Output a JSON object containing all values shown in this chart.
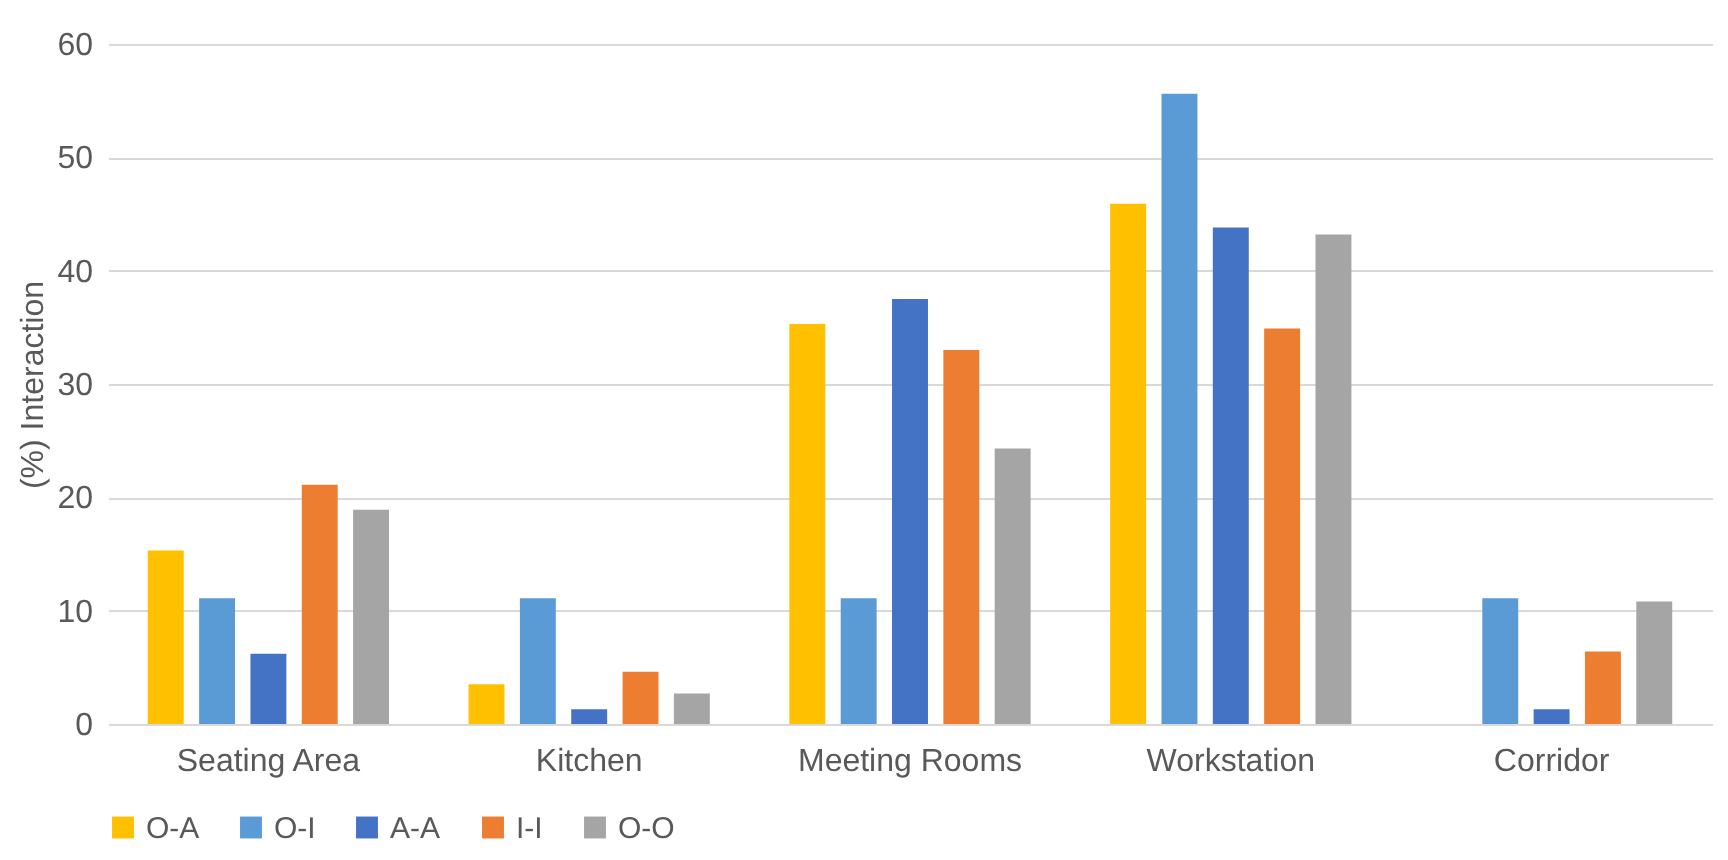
{
  "chart_data": {
    "type": "bar",
    "ylabel": "(%) Interaction",
    "categories": [
      "Seating Area",
      "Kitchen",
      "Meeting Rooms",
      "Workstation",
      "Corridor"
    ],
    "series": [
      {
        "name": "O-A",
        "color": "#ffc000",
        "values": [
          15.3,
          3.5,
          35.3,
          45.9,
          0
        ]
      },
      {
        "name": "O-I",
        "color": "#5b9bd5",
        "values": [
          11.1,
          11.1,
          11.1,
          55.6,
          11.1
        ]
      },
      {
        "name": "A-A",
        "color": "#4472c4",
        "values": [
          6.2,
          1.3,
          37.5,
          43.8,
          1.3
        ]
      },
      {
        "name": "I-I",
        "color": "#ed7d31",
        "values": [
          21.1,
          4.6,
          33.0,
          34.9,
          6.4
        ]
      },
      {
        "name": "O-O",
        "color": "#a5a5a5",
        "values": [
          18.9,
          2.7,
          24.3,
          43.2,
          10.8
        ]
      }
    ],
    "ylim": [
      0,
      60
    ],
    "yticks": [
      0,
      10,
      20,
      30,
      40,
      50,
      60
    ],
    "grid": "y",
    "legend": "bottom"
  }
}
